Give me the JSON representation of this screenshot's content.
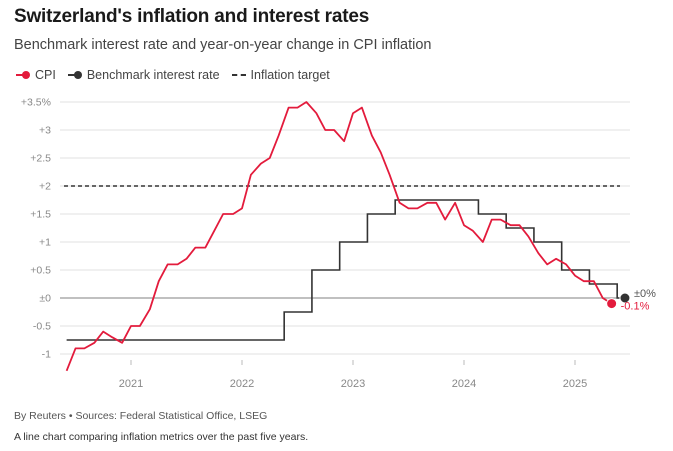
{
  "chart_data": {
    "type": "line",
    "title": "Switzerland's inflation and interest rates",
    "subtitle": "Benchmark interest rate and year-on-year change in CPI inflation",
    "ylim": [
      -1.3,
      3.5
    ],
    "xlim": [
      2020.4,
      2025.5
    ],
    "y_ticks": [
      {
        "v": 3.5,
        "label": "+3.5%"
      },
      {
        "v": 3,
        "label": "+3"
      },
      {
        "v": 2.5,
        "label": "+2.5"
      },
      {
        "v": 2,
        "label": "+2"
      },
      {
        "v": 1.5,
        "label": "+1.5"
      },
      {
        "v": 1,
        "label": "+1"
      },
      {
        "v": 0.5,
        "label": "+0.5"
      },
      {
        "v": 0,
        "label": "±0"
      },
      {
        "v": -0.5,
        "label": "-0.5"
      },
      {
        "v": -1,
        "label": "-1"
      }
    ],
    "x_ticks": [
      {
        "v": 2021,
        "label": "2021"
      },
      {
        "v": 2022,
        "label": "2022"
      },
      {
        "v": 2023,
        "label": "2023"
      },
      {
        "v": 2024,
        "label": "2024"
      },
      {
        "v": 2025,
        "label": "2025"
      }
    ],
    "legend": {
      "cpi": "CPI",
      "rate": "Benchmark interest rate",
      "target": "Inflation target"
    },
    "inflation_target": 2,
    "colors": {
      "cpi": "#e31b3c",
      "rate": "#333333",
      "target": "#333333",
      "grid": "#e2e2e2",
      "zero": "#9a9a9a"
    },
    "series": [
      {
        "name": "CPI",
        "x": [
          2020.42,
          2020.5,
          2020.58,
          2020.67,
          2020.75,
          2020.83,
          2020.92,
          2021.0,
          2021.08,
          2021.17,
          2021.25,
          2021.33,
          2021.42,
          2021.5,
          2021.58,
          2021.67,
          2021.75,
          2021.83,
          2021.92,
          2022.0,
          2022.08,
          2022.17,
          2022.25,
          2022.33,
          2022.42,
          2022.5,
          2022.58,
          2022.67,
          2022.75,
          2022.83,
          2022.92,
          2023.0,
          2023.08,
          2023.17,
          2023.25,
          2023.33,
          2023.42,
          2023.5,
          2023.58,
          2023.67,
          2023.75,
          2023.83,
          2023.92,
          2024.0,
          2024.08,
          2024.17,
          2024.25,
          2024.33,
          2024.42,
          2024.5,
          2024.58,
          2024.67,
          2024.75,
          2024.83,
          2024.92,
          2025.0,
          2025.08,
          2025.17,
          2025.25,
          2025.33
        ],
        "values": [
          -1.3,
          -0.9,
          -0.9,
          -0.8,
          -0.6,
          -0.7,
          -0.8,
          -0.5,
          -0.5,
          -0.2,
          0.3,
          0.6,
          0.6,
          0.7,
          0.9,
          0.9,
          1.2,
          1.5,
          1.5,
          1.6,
          2.2,
          2.4,
          2.5,
          2.9,
          3.4,
          3.4,
          3.5,
          3.3,
          3.0,
          3.0,
          2.8,
          3.3,
          3.4,
          2.9,
          2.6,
          2.2,
          1.7,
          1.6,
          1.6,
          1.7,
          1.7,
          1.4,
          1.7,
          1.3,
          1.2,
          1.0,
          1.4,
          1.4,
          1.3,
          1.3,
          1.1,
          0.8,
          0.6,
          0.7,
          0.6,
          0.4,
          0.3,
          0.3,
          0.0,
          -0.1
        ]
      },
      {
        "name": "Benchmark interest rate",
        "step": true,
        "x": [
          2020.42,
          2022.38,
          2022.63,
          2022.88,
          2023.13,
          2023.38,
          2023.63,
          2024.13,
          2024.38,
          2024.63,
          2024.88,
          2025.13,
          2025.38,
          2025.45
        ],
        "values": [
          -0.75,
          -0.25,
          0.5,
          1.0,
          1.5,
          1.75,
          1.75,
          1.5,
          1.25,
          1.0,
          0.5,
          0.25,
          0.0,
          0.0
        ]
      }
    ],
    "end_labels": {
      "rate": "±0%",
      "cpi": "-0.1%"
    }
  },
  "footer": {
    "source": "By Reuters • Sources: Federal Statistical Office, LSEG",
    "caption": "A line chart comparing inflation metrics over the past five years."
  }
}
